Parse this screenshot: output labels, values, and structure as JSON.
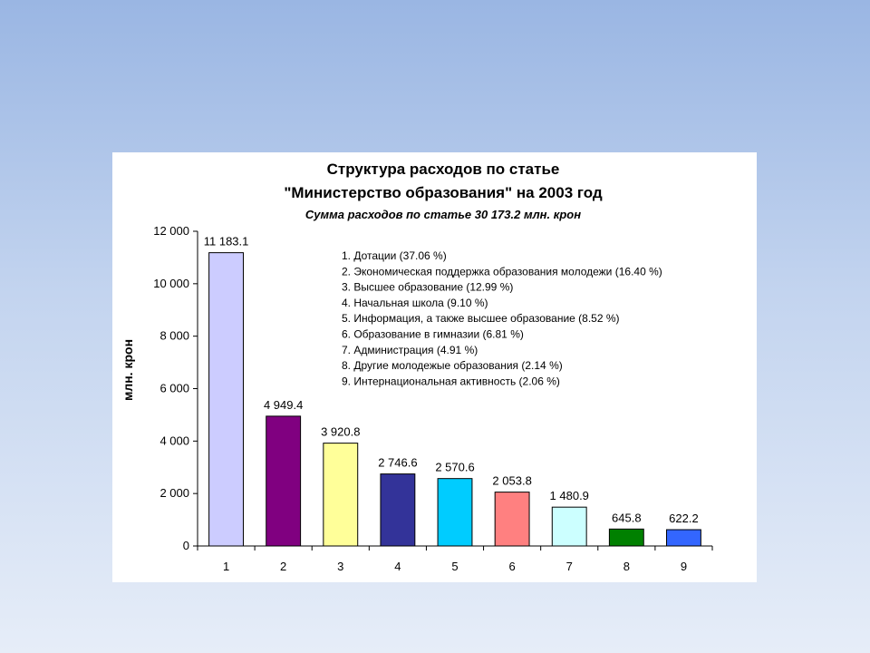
{
  "chart_data": {
    "type": "bar",
    "title_line1": "Структура расходов по статье",
    "title_line2": "\"Министерство образования\" на 2003 год",
    "subtitle": "Сумма расходов по статье 30 173.2 млн. крон",
    "ylabel": "млн. крон",
    "xlabel": "",
    "ylim": [
      0,
      12000
    ],
    "yticks": [
      0,
      2000,
      4000,
      6000,
      8000,
      10000,
      12000
    ],
    "ytick_labels": [
      "0",
      "2 000",
      "4 000",
      "6 000",
      "8 000",
      "10 000",
      "12 000"
    ],
    "categories": [
      "1",
      "2",
      "3",
      "4",
      "5",
      "6",
      "7",
      "8",
      "9"
    ],
    "values": [
      11183.1,
      4949.4,
      3920.8,
      2746.6,
      2570.6,
      2053.8,
      1480.9,
      645.8,
      622.2
    ],
    "value_labels": [
      "11 183.1",
      "4 949.4",
      "3 920.8",
      "2 746.6",
      "2 570.6",
      "2 053.8",
      "1 480.9",
      "645.8",
      "622.2"
    ],
    "colors": [
      "#ccccff",
      "#800080",
      "#ffff99",
      "#333399",
      "#00ccff",
      "#ff8080",
      "#ccffff",
      "#008000",
      "#3366ff"
    ],
    "legend": [
      "1. Дотации (37.06 %)",
      "2. Экономическая поддержка образования молодежи (16.40 %)",
      "3. Высшее образование (12.99 %)",
      "4. Начальная школа (9.10 %)",
      "5. Информация, а также высшее образование (8.52 %)",
      "6. Образование в гимназии (6.81 %)",
      "7. Администрация (4.91 %)",
      "8. Другие молодежые образования (2.14 %)",
      "9. Интернациональная активность (2.06 %)"
    ],
    "grid": false,
    "legend_position": "top-right"
  }
}
